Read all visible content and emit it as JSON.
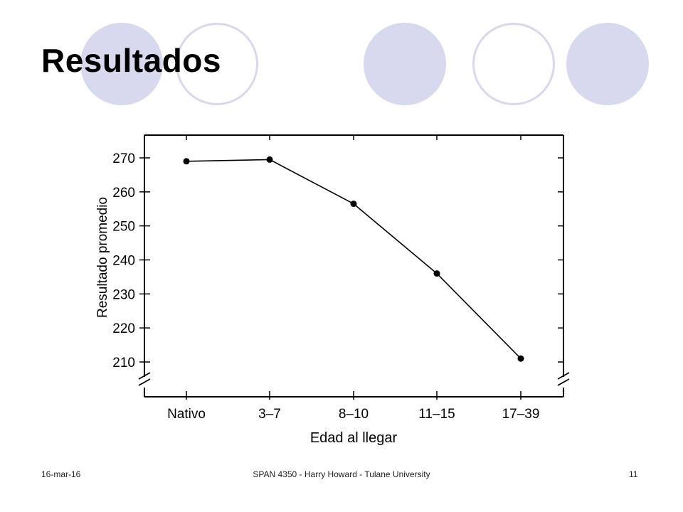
{
  "slide": {
    "title": "Resultados"
  },
  "footer": {
    "date": "16-mar-16",
    "center": "SPAN 4350 - Harry Howard - Tulane University",
    "page": "11"
  },
  "colors": {
    "decor": "#d8d8ee",
    "line": "#000000"
  },
  "chart_data": {
    "type": "line",
    "title": "",
    "xlabel": "Edad al llegar",
    "ylabel": "Resultado promedio",
    "categories": [
      "Nativo",
      "3–7",
      "8–10",
      "11–15",
      "17–39"
    ],
    "y_ticks": [
      210,
      220,
      230,
      240,
      250,
      260,
      270
    ],
    "ylim": [
      204,
      277
    ],
    "axis_break": true,
    "grid": false,
    "series": [
      {
        "values": [
          269,
          269.5,
          256.5,
          236,
          211
        ]
      }
    ]
  }
}
